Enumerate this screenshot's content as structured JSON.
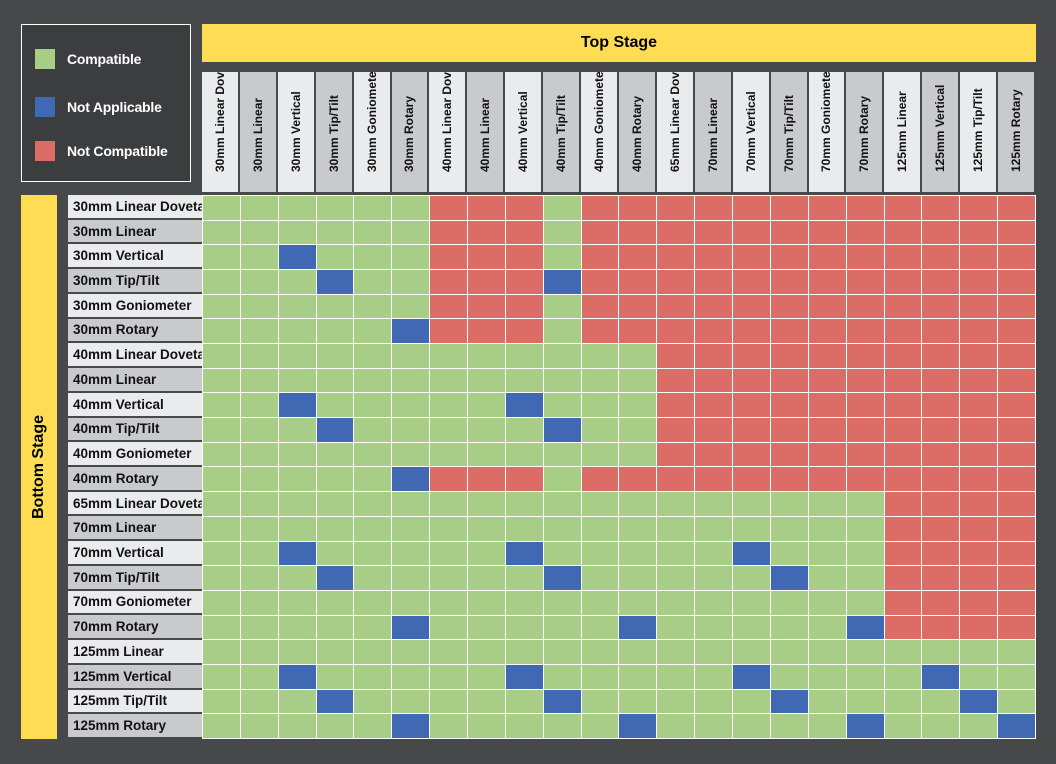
{
  "colors": {
    "compatible": "#a7cd87",
    "not_applicable": "#4169b3",
    "not_compatible": "#dc6d66",
    "band": "#fedd55",
    "header_light": "#eaebec",
    "header_dark": "#c9cacc"
  },
  "legend": [
    {
      "key": "C",
      "label": "Compatible",
      "color": "#a7cd87"
    },
    {
      "key": "N",
      "label": "Not Applicable",
      "color": "#4169b3"
    },
    {
      "key": "X",
      "label": "Not Compatible",
      "color": "#dc6d66"
    }
  ],
  "top_title": "Top Stage",
  "side_title": "Bottom Stage",
  "chart_data": {
    "type": "heatmap",
    "columns": [
      "30mm Linear Dovetail",
      "30mm Linear",
      "30mm Vertical",
      "30mm Tip/Tilt",
      "30mm Goniometer",
      "30mm Rotary",
      "40mm Linear Dovetail",
      "40mm Linear",
      "40mm Vertical",
      "40mm Tip/Tilt",
      "40mm Goniometer",
      "40mm Rotary",
      "65mm Linear Dovetail",
      "70mm Linear",
      "70mm Vertical",
      "70mm Tip/Tilt",
      "70mm Goniometer",
      "70mm Rotary",
      "125mm Linear",
      "125mm Vertical",
      "125mm Tip/Tilt",
      "125mm Rotary"
    ],
    "rows": [
      "30mm Linear Dovetail",
      "30mm Linear",
      "30mm Vertical",
      "30mm Tip/Tilt",
      "30mm Goniometer",
      "30mm Rotary",
      "40mm Linear Dovetail",
      "40mm Linear",
      "40mm Vertical",
      "40mm Tip/Tilt",
      "40mm Goniometer",
      "40mm Rotary",
      "65mm Linear Dovetail",
      "70mm Linear",
      "70mm Vertical",
      "70mm Tip/Tilt",
      "70mm Goniometer",
      "70mm Rotary",
      "125mm Linear",
      "125mm Vertical",
      "125mm Tip/Tilt",
      "125mm Rotary"
    ],
    "values": [
      "CCCCCCXXXCXXXXXXXXXXXX",
      "CCCCCCXXXCXXXXXXXXXXXX",
      "CCNCCCXXXCXXXXXXXXXXXX",
      "CCCNCCXXXNXXXXXXXXXXXX",
      "CCCCCCXXXCXXXXXXXXXXXX",
      "CCCCCNXXXCXXXXXXXXXXXX",
      "CCCCCCCCCCCCXXXXXXXXXX",
      "CCCCCCCCCCCCXXXXXXXXXX",
      "CCNCCCCCNCCCXXXXXXXXXX",
      "CCCNCCCCCNCCXXXXXXXXXX",
      "CCCCCCCCCCCCXXXXXXXXXX",
      "CCCCCNXXXCXXXXXXXXXXXX",
      "CCCCCCCCCCCCCCCCCCXXXX",
      "CCCCCCCCCCCCCCCCCCXXXX",
      "CCNCCCCCNCCCCCNCCCXXXX",
      "CCCNCCCCCNCCCCCNCCXXXX",
      "CCCCCCCCCCCCCCCCCCXXXX",
      "CCCCCNCCCCCNCCCCCNXXXX",
      "CCCCCCCCCCCCCCCCCCCCCC",
      "CCNCCCCCNCCCCCNCCCCNCC",
      "CCCNCCCCCNCCCCCNCCCCNC",
      "CCCCCNCCCCCNCCCCCNCCCN"
    ]
  }
}
